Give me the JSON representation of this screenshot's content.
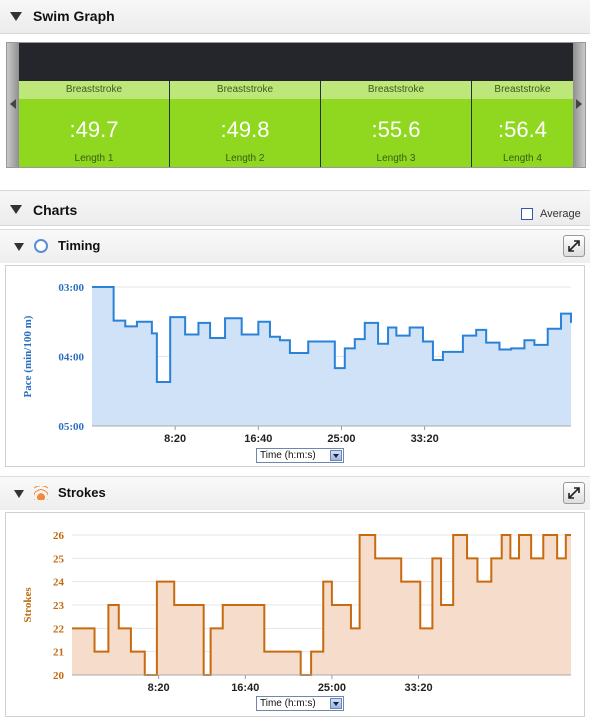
{
  "swim_graph": {
    "title": "Swim Graph",
    "lengths": [
      {
        "stroke": "Breaststroke",
        "time": ":49.7",
        "label": "Length 1"
      },
      {
        "stroke": "Breaststroke",
        "time": ":49.8",
        "label": "Length 2"
      },
      {
        "stroke": "Breaststroke",
        "time": ":55.6",
        "label": "Length 3"
      },
      {
        "stroke": "Breaststroke",
        "time": ":56.4",
        "label": "Length 4"
      }
    ],
    "card_color": "#8fd81f"
  },
  "charts": {
    "title": "Charts",
    "average_label": "Average",
    "average_checked": false
  },
  "timing": {
    "title": "Timing",
    "icon": "clock-icon",
    "x_selector": "Time (h:m:s)"
  },
  "strokes": {
    "title": "Strokes",
    "icon": "signal-icon",
    "x_selector": "Time (h:m:s)"
  },
  "chart_data": [
    {
      "type": "area",
      "ylabel": "Pace (min/100 m)",
      "y_tick_labels": [
        "03:00",
        "04:00",
        "05:00"
      ],
      "y_inverted": true,
      "ylim_seconds": [
        180,
        300
      ],
      "xlim_seconds": [
        0,
        2880
      ],
      "x_tick_labels": [
        "8:20",
        "16:40",
        "25:00",
        "33:20"
      ],
      "x_tick_values_seconds": [
        500,
        1000,
        1500,
        2000
      ],
      "grid": true,
      "color": "#2a82d8",
      "fill": "#cfe2f7",
      "x_seconds": [
        0,
        130,
        200,
        270,
        360,
        390,
        470,
        560,
        640,
        710,
        800,
        900,
        1000,
        1070,
        1130,
        1190,
        1300,
        1460,
        1520,
        1580,
        1640,
        1720,
        1780,
        1830,
        1910,
        1990,
        2050,
        2110,
        2170,
        2230,
        2310,
        2370,
        2450,
        2520,
        2600,
        2660,
        2740,
        2820,
        2880
      ],
      "y_seconds": [
        180,
        209,
        214,
        210,
        220,
        262,
        206,
        221,
        211,
        224,
        207,
        221,
        210,
        223,
        226,
        237,
        227,
        250,
        233,
        225,
        211,
        229,
        215,
        222,
        215,
        227,
        243,
        236,
        236,
        222,
        217,
        228,
        234,
        233,
        226,
        230,
        216,
        203,
        211
      ]
    },
    {
      "type": "area",
      "ylabel": "Strokes",
      "y_tick_labels": [
        "20",
        "21",
        "22",
        "23",
        "24",
        "25",
        "26"
      ],
      "ylim": [
        20,
        26
      ],
      "xlim_seconds": [
        0,
        2880
      ],
      "x_tick_labels": [
        "8:20",
        "16:40",
        "25:00",
        "33:20"
      ],
      "x_tick_values_seconds": [
        500,
        1000,
        1500,
        2000
      ],
      "grid": true,
      "color": "#c86a10",
      "fill": "#f5dccb",
      "x_seconds": [
        0,
        50,
        130,
        210,
        270,
        340,
        420,
        490,
        590,
        670,
        760,
        800,
        870,
        950,
        1110,
        1230,
        1320,
        1380,
        1450,
        1500,
        1610,
        1660,
        1750,
        1900,
        1950,
        2010,
        2080,
        2130,
        2200,
        2280,
        2340,
        2420,
        2480,
        2530,
        2580,
        2650,
        2720,
        2800,
        2850
      ],
      "values": [
        22,
        22,
        21,
        23,
        22,
        21,
        20,
        24,
        23,
        23,
        20,
        22,
        23,
        23,
        21,
        21,
        20,
        21,
        24,
        23,
        22,
        26,
        25,
        24,
        24,
        22,
        25,
        23,
        26,
        25,
        24,
        25,
        26,
        25,
        26,
        25,
        26,
        25,
        26
      ]
    }
  ]
}
